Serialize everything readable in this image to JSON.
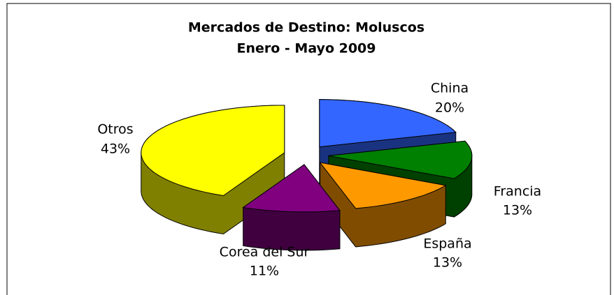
{
  "chart_data": {
    "type": "pie3d",
    "title": "Mercados de Destino: Moluscos",
    "subtitle": "Enero - Mayo 2009",
    "categories": [
      "China",
      "Francia",
      "España",
      "Corea del Sur",
      "Otros"
    ],
    "values": [
      20,
      13,
      13,
      11,
      43
    ],
    "value_labels": [
      "20%",
      "13%",
      "13%",
      "11%",
      "43%"
    ],
    "colors": [
      "#3366ff",
      "#008000",
      "#ff9900",
      "#800080",
      "#ffff00"
    ]
  }
}
